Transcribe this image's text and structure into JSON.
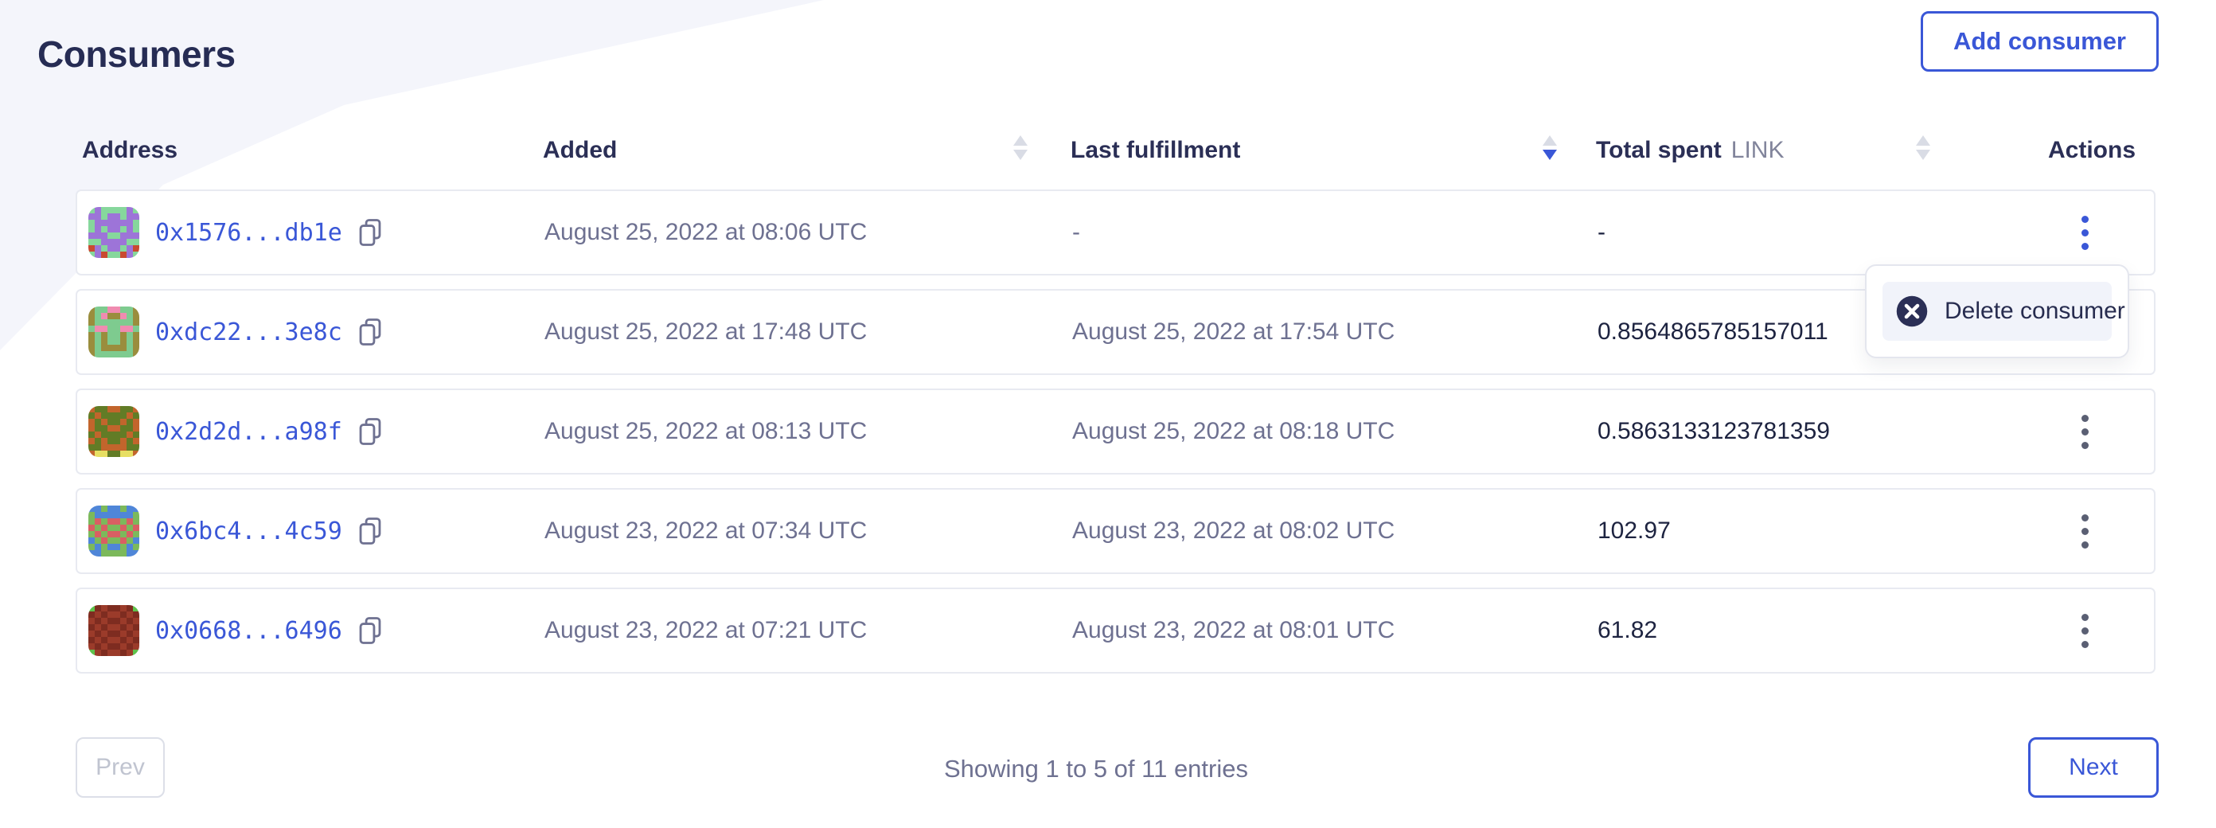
{
  "page": {
    "title": "Consumers"
  },
  "header": {
    "add_button_label": "Add consumer"
  },
  "table": {
    "columns": [
      {
        "label": "Address"
      },
      {
        "label": "Added",
        "sortable": true,
        "sort": "none"
      },
      {
        "label": "Last fulfillment",
        "sortable": true,
        "sort": "desc"
      },
      {
        "label": "Total spent",
        "unit": "LINK",
        "sortable": true,
        "sort": "none"
      },
      {
        "label": "Actions"
      }
    ],
    "rows": [
      {
        "address": "0x1576...db1e",
        "added": "August 25, 2022 at 08:06 UTC",
        "last_fulfillment": "-",
        "total_spent": "-",
        "menu_open": true,
        "avatar": {
          "bg": "#86d79c",
          "fg": "#9d74d8",
          "spot": "#c94a31",
          "grid": [
            "01000010",
            "11011011",
            "01111110",
            "01011010",
            "11100111",
            "00111100",
            "21011012",
            "01200210"
          ]
        }
      },
      {
        "address": "0xdc22...3e8c",
        "added": "August 25, 2022 at 17:48 UTC",
        "last_fulfillment": "August 25, 2022 at 17:54 UTC",
        "total_spent": "0.8564865785157011",
        "menu_open": false,
        "avatar": {
          "bg": "#7ecb8f",
          "fg": "#9a8d3d",
          "spot": "#f08bb0",
          "grid": [
            "10022001",
            "10211201",
            "10000001",
            "02200220",
            "10100101",
            "10100101",
            "10111101",
            "10000001"
          ]
        }
      },
      {
        "address": "0x2d2d...a98f",
        "added": "August 25, 2022 at 08:13 UTC",
        "last_fulfillment": "August 25, 2022 at 08:18 UTC",
        "total_spent": "0.5863133123781359",
        "menu_open": false,
        "avatar": {
          "bg": "#c2652c",
          "fg": "#627c26",
          "spot": "#e7df63",
          "grid": [
            "01100110",
            "10111101",
            "01011010",
            "01100110",
            "10111101",
            "01011010",
            "11000011",
            "02211220"
          ]
        }
      },
      {
        "address": "0x6bc4...4c59",
        "added": "August 23, 2022 at 07:34 UTC",
        "last_fulfillment": "August 23, 2022 at 08:02 UTC",
        "total_spent": "102.97",
        "menu_open": false,
        "avatar": {
          "bg": "#4f86d8",
          "fg": "#7cb95b",
          "spot": "#d95f63",
          "grid": [
            "00100100",
            "10000001",
            "12122121",
            "21211212",
            "12122121",
            "01211210",
            "10100101",
            "00111100"
          ]
        }
      },
      {
        "address": "0x0668...6496",
        "added": "August 23, 2022 at 07:21 UTC",
        "last_fulfillment": "August 23, 2022 at 08:01 UTC",
        "total_spent": "61.82",
        "menu_open": false,
        "avatar": {
          "bg": "#9b3b2a",
          "fg": "#7e2c20",
          "spot": "#5fc24c",
          "grid": [
            "21011012",
            "10100101",
            "01011010",
            "10100101",
            "01011010",
            "10100101",
            "01011010",
            "20100102"
          ]
        }
      }
    ]
  },
  "menu": {
    "delete_label": "Delete consumer"
  },
  "pagination": {
    "prev_label": "Prev",
    "summary": "Showing 1 to 5 of 11 entries",
    "next_label": "Next"
  },
  "colors": {
    "accent_blue": "#3a57d7",
    "navy_text": "#262c54",
    "gray_text": "#6e7191",
    "wedge_bg": "#f4f5fb",
    "row_border": "#e8eaf1",
    "menu_item_bg": "#f1f3fa"
  }
}
